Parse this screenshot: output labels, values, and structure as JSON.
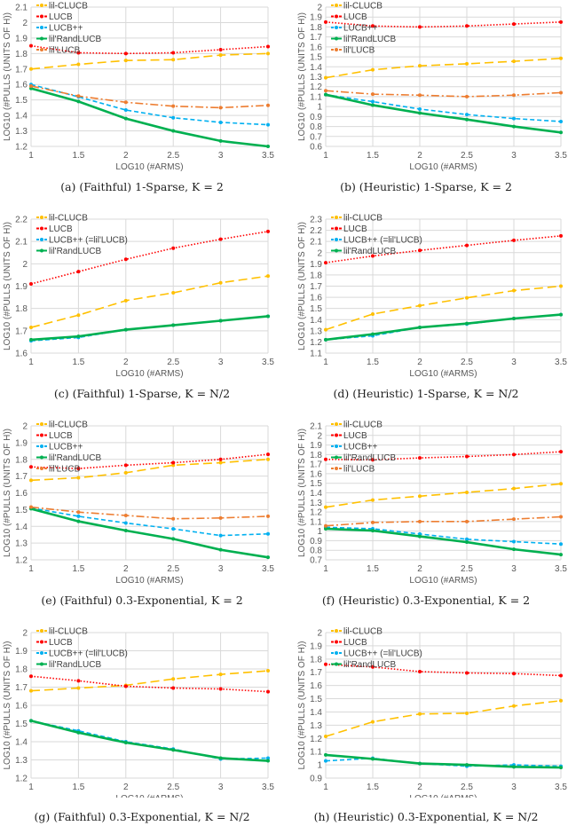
{
  "chart_data": [
    {
      "type": "line",
      "title": "(a) (Faithful) 1-Sparse, K = 2",
      "xlabel": "LOG10 (#ARMS)",
      "ylabel": "LOG10 (#PULLS (UNITS OF H))",
      "x": [
        1,
        1.5,
        2,
        2.5,
        3,
        3.5
      ],
      "xlim": [
        1,
        3.5
      ],
      "ylim": [
        1.2,
        2.1
      ],
      "ystep": 0.1,
      "grid": true,
      "legend": "top-left",
      "series": [
        {
          "name": "lil-CLUCB",
          "color": "#ffc000",
          "values": [
            1.7,
            1.73,
            1.755,
            1.76,
            1.79,
            1.8
          ]
        },
        {
          "name": "LUCB",
          "color": "#ff0000",
          "values": [
            1.85,
            1.805,
            1.8,
            1.805,
            1.825,
            1.845
          ]
        },
        {
          "name": "LUCB++",
          "color": "#00b0f0",
          "values": [
            1.6,
            1.52,
            1.435,
            1.385,
            1.355,
            1.34
          ]
        },
        {
          "name": "lil'RandLUCB",
          "color": "#00b050",
          "values": [
            1.575,
            1.49,
            1.38,
            1.3,
            1.235,
            1.2
          ]
        },
        {
          "name": "lil'LUCB",
          "color": "#ed7d31",
          "values": [
            1.59,
            1.525,
            1.485,
            1.46,
            1.45,
            1.465
          ]
        }
      ]
    },
    {
      "type": "line",
      "title": "(b) (Heuristic) 1-Sparse, K = 2",
      "xlabel": "LOG10 (#ARMS)",
      "ylabel": "LOG10 (#PULLS (UNITS OF H))",
      "x": [
        1,
        1.5,
        2,
        2.5,
        3,
        3.5
      ],
      "xlim": [
        1,
        3.5
      ],
      "ylim": [
        0.6,
        2.0
      ],
      "ystep": 0.1,
      "grid": true,
      "legend": "top-left",
      "series": [
        {
          "name": "lil-CLUCB",
          "color": "#ffc000",
          "values": [
            1.29,
            1.37,
            1.41,
            1.43,
            1.455,
            1.485
          ]
        },
        {
          "name": "LUCB",
          "color": "#ff0000",
          "values": [
            1.85,
            1.81,
            1.8,
            1.81,
            1.83,
            1.85
          ]
        },
        {
          "name": "LUCB++",
          "color": "#00b0f0",
          "values": [
            1.12,
            1.05,
            0.975,
            0.92,
            0.88,
            0.85
          ]
        },
        {
          "name": "lil'RandLUCB",
          "color": "#00b050",
          "values": [
            1.12,
            1.015,
            0.935,
            0.87,
            0.8,
            0.74
          ]
        },
        {
          "name": "lil'LUCB",
          "color": "#ed7d31",
          "values": [
            1.16,
            1.125,
            1.115,
            1.1,
            1.115,
            1.14
          ]
        }
      ]
    },
    {
      "type": "line",
      "title": "(c) (Faithful) 1-Sparse, K = N/2",
      "xlabel": "LOG10 (#ARMS)",
      "ylabel": "LOG10 (#PULLS (UNITS OF H))",
      "x": [
        1,
        1.5,
        2,
        2.5,
        3,
        3.5
      ],
      "xlim": [
        1,
        3.5
      ],
      "ylim": [
        1.6,
        2.2
      ],
      "ystep": 0.1,
      "grid": true,
      "legend": "top-left",
      "series": [
        {
          "name": "lil-CLUCB",
          "color": "#ffc000",
          "values": [
            1.715,
            1.77,
            1.835,
            1.87,
            1.915,
            1.945
          ]
        },
        {
          "name": "LUCB",
          "color": "#ff0000",
          "values": [
            1.91,
            1.965,
            2.02,
            2.07,
            2.11,
            2.145
          ]
        },
        {
          "name": "LUCB++ (=lil'LUCB)",
          "color": "#00b0f0",
          "values": [
            1.655,
            1.67,
            1.705,
            1.725,
            1.745,
            1.765
          ]
        },
        {
          "name": "lil'RandLUCB",
          "color": "#00b050",
          "values": [
            1.66,
            1.675,
            1.705,
            1.725,
            1.745,
            1.765
          ]
        }
      ]
    },
    {
      "type": "line",
      "title": "(d) (Heuristic) 1-Sparse, K = N/2",
      "xlabel": "LOG10 (#ARMS)",
      "ylabel": "LOG10 (#PULLS (UNITS OF H))",
      "x": [
        1,
        1.5,
        2,
        2.5,
        3,
        3.5
      ],
      "xlim": [
        1,
        3.5
      ],
      "ylim": [
        1.1,
        2.3
      ],
      "ystep": 0.1,
      "grid": true,
      "legend": "top-left",
      "series": [
        {
          "name": "lil-CLUCB",
          "color": "#ffc000",
          "values": [
            1.31,
            1.45,
            1.525,
            1.595,
            1.66,
            1.7
          ]
        },
        {
          "name": "LUCB",
          "color": "#ff0000",
          "values": [
            1.91,
            1.97,
            2.02,
            2.065,
            2.11,
            2.15
          ]
        },
        {
          "name": "LUCB++ (=lil'LUCB)",
          "color": "#00b0f0",
          "values": [
            1.22,
            1.255,
            1.33,
            1.36,
            1.41,
            1.445
          ]
        },
        {
          "name": "lil'RandLUCB",
          "color": "#00b050",
          "values": [
            1.22,
            1.27,
            1.33,
            1.365,
            1.41,
            1.445
          ]
        }
      ]
    },
    {
      "type": "line",
      "title": "(e) (Faithful) 0.3-Exponential, K = 2",
      "xlabel": "LOG10 (#ARMS)",
      "ylabel": "LOG10 (#PULLS (UNITS OF H))",
      "x": [
        1,
        1.5,
        2,
        2.5,
        3,
        3.5
      ],
      "xlim": [
        1,
        3.5
      ],
      "ylim": [
        1.2,
        2.0
      ],
      "ystep": 0.1,
      "grid": true,
      "legend": "top-left",
      "series": [
        {
          "name": "lil-CLUCB",
          "color": "#ffc000",
          "values": [
            1.675,
            1.69,
            1.72,
            1.765,
            1.78,
            1.8
          ]
        },
        {
          "name": "LUCB",
          "color": "#ff0000",
          "values": [
            1.755,
            1.745,
            1.765,
            1.78,
            1.8,
            1.83
          ]
        },
        {
          "name": "LUCB++",
          "color": "#00b0f0",
          "values": [
            1.51,
            1.46,
            1.42,
            1.385,
            1.345,
            1.355
          ]
        },
        {
          "name": "lil'RandLUCB",
          "color": "#00b050",
          "values": [
            1.505,
            1.43,
            1.375,
            1.325,
            1.26,
            1.215
          ]
        },
        {
          "name": "lil'LUCB",
          "color": "#ed7d31",
          "values": [
            1.515,
            1.485,
            1.465,
            1.445,
            1.45,
            1.46
          ]
        }
      ]
    },
    {
      "type": "line",
      "title": "(f) (Heuristic) 0.3-Exponential, K = 2",
      "xlabel": "LOG10 (#ARMS)",
      "ylabel": "LOG10 (#PULLS (UNITS OF H))",
      "x": [
        1,
        1.5,
        2,
        2.5,
        3,
        3.5
      ],
      "xlim": [
        1,
        3.5
      ],
      "ylim": [
        0.7,
        2.1
      ],
      "ystep": 0.1,
      "grid": true,
      "legend": "top-left",
      "series": [
        {
          "name": "lil-CLUCB",
          "color": "#ffc000",
          "values": [
            1.25,
            1.325,
            1.365,
            1.405,
            1.445,
            1.495
          ]
        },
        {
          "name": "LUCB",
          "color": "#ff0000",
          "values": [
            1.75,
            1.745,
            1.765,
            1.78,
            1.8,
            1.83
          ]
        },
        {
          "name": "LUCB++",
          "color": "#00b0f0",
          "values": [
            1.04,
            1.025,
            0.97,
            0.915,
            0.89,
            0.865
          ]
        },
        {
          "name": "lil'RandLUCB",
          "color": "#00b050",
          "values": [
            1.025,
            1.005,
            0.945,
            0.885,
            0.81,
            0.755
          ]
        },
        {
          "name": "lil'LUCB",
          "color": "#ed7d31",
          "values": [
            1.055,
            1.09,
            1.1,
            1.1,
            1.125,
            1.15
          ]
        }
      ]
    },
    {
      "type": "line",
      "title": "(g) (Faithful) 0.3-Exponential, K = N/2",
      "xlabel": "LOG10 (#ARMS)",
      "ylabel": "LOG10 (#PULLS (UNITS OF H))",
      "x": [
        1,
        1.5,
        2,
        2.5,
        3,
        3.5
      ],
      "xlim": [
        1,
        3.5
      ],
      "ylim": [
        1.2,
        2.0
      ],
      "ystep": 0.1,
      "grid": true,
      "legend": "top-left",
      "series": [
        {
          "name": "lil-CLUCB",
          "color": "#ffc000",
          "values": [
            1.68,
            1.695,
            1.71,
            1.745,
            1.77,
            1.79
          ]
        },
        {
          "name": "LUCB",
          "color": "#ff0000",
          "values": [
            1.76,
            1.735,
            1.705,
            1.695,
            1.69,
            1.675
          ]
        },
        {
          "name": "LUCB++ (=lil'LUCB)",
          "color": "#00b0f0",
          "values": [
            1.515,
            1.46,
            1.4,
            1.36,
            1.305,
            1.31
          ]
        },
        {
          "name": "lil'RandLUCB",
          "color": "#00b050",
          "values": [
            1.515,
            1.45,
            1.395,
            1.355,
            1.31,
            1.295
          ]
        }
      ]
    },
    {
      "type": "line",
      "title": "(h) (Heuristic) 0.3-Exponential, K = N/2",
      "xlabel": "LOG10 (#ARMS)",
      "ylabel": "LOG10 (#PULLS (UNITS OF H))",
      "x": [
        1,
        1.5,
        2,
        2.5,
        3,
        3.5
      ],
      "xlim": [
        1,
        3.5
      ],
      "ylim": [
        0.9,
        2.0
      ],
      "ystep": 0.1,
      "grid": true,
      "legend": "top-left",
      "series": [
        {
          "name": "lil-CLUCB",
          "color": "#ffc000",
          "values": [
            1.215,
            1.325,
            1.385,
            1.39,
            1.445,
            1.485
          ]
        },
        {
          "name": "LUCB",
          "color": "#ff0000",
          "values": [
            1.76,
            1.74,
            1.705,
            1.695,
            1.69,
            1.675
          ]
        },
        {
          "name": "LUCB++ (=lil'LUCB)",
          "color": "#00b0f0",
          "values": [
            1.03,
            1.05,
            1.01,
            0.99,
            1.0,
            0.99
          ]
        },
        {
          "name": "lil'RandLUCB",
          "color": "#00b050",
          "values": [
            1.075,
            1.045,
            1.01,
            1.0,
            0.985,
            0.98
          ]
        }
      ]
    }
  ]
}
